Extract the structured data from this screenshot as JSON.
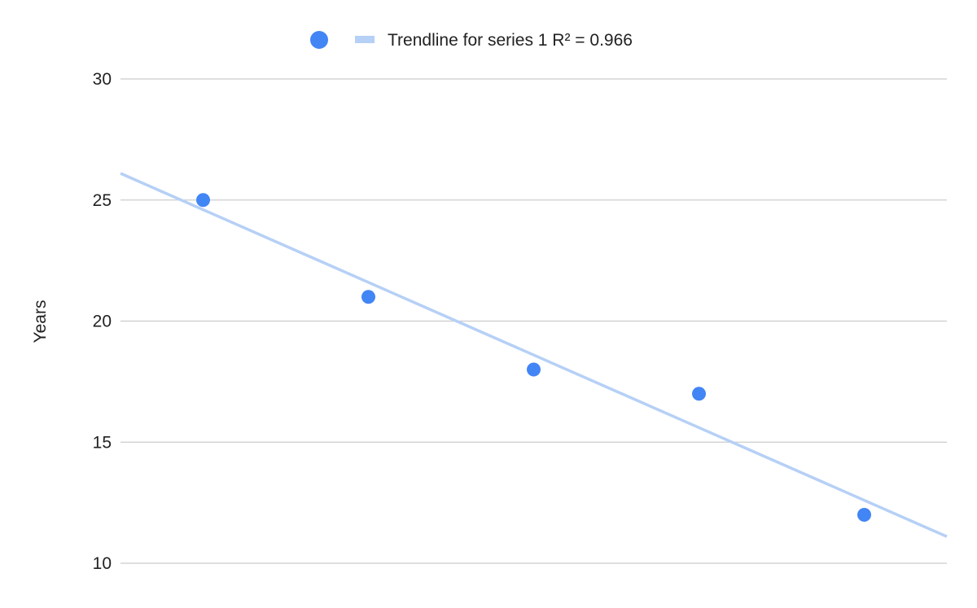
{
  "chart_data": {
    "type": "scatter",
    "title": "",
    "xlabel": "",
    "ylabel": "Years",
    "ylim": [
      10,
      30
    ],
    "yticks": [
      10,
      15,
      20,
      25,
      30
    ],
    "grid": true,
    "legend": {
      "placement": "top-center",
      "entries": [
        {
          "name": "",
          "kind": "marker"
        },
        {
          "name": "Trendline for series 1 R² = 0.966",
          "kind": "line"
        }
      ]
    },
    "series": [
      {
        "name": "",
        "x": [
          1,
          2,
          3,
          4,
          5
        ],
        "values": [
          25,
          21,
          18,
          17,
          12
        ]
      }
    ],
    "trendline": {
      "name": "Trendline for series 1 R² = 0.966",
      "type": "linear",
      "r_squared": 0.966
    },
    "colors": {
      "series": "#4285f4",
      "trendline": "#b6d0f6",
      "grid": "#cccccc",
      "text": "#222222"
    }
  }
}
